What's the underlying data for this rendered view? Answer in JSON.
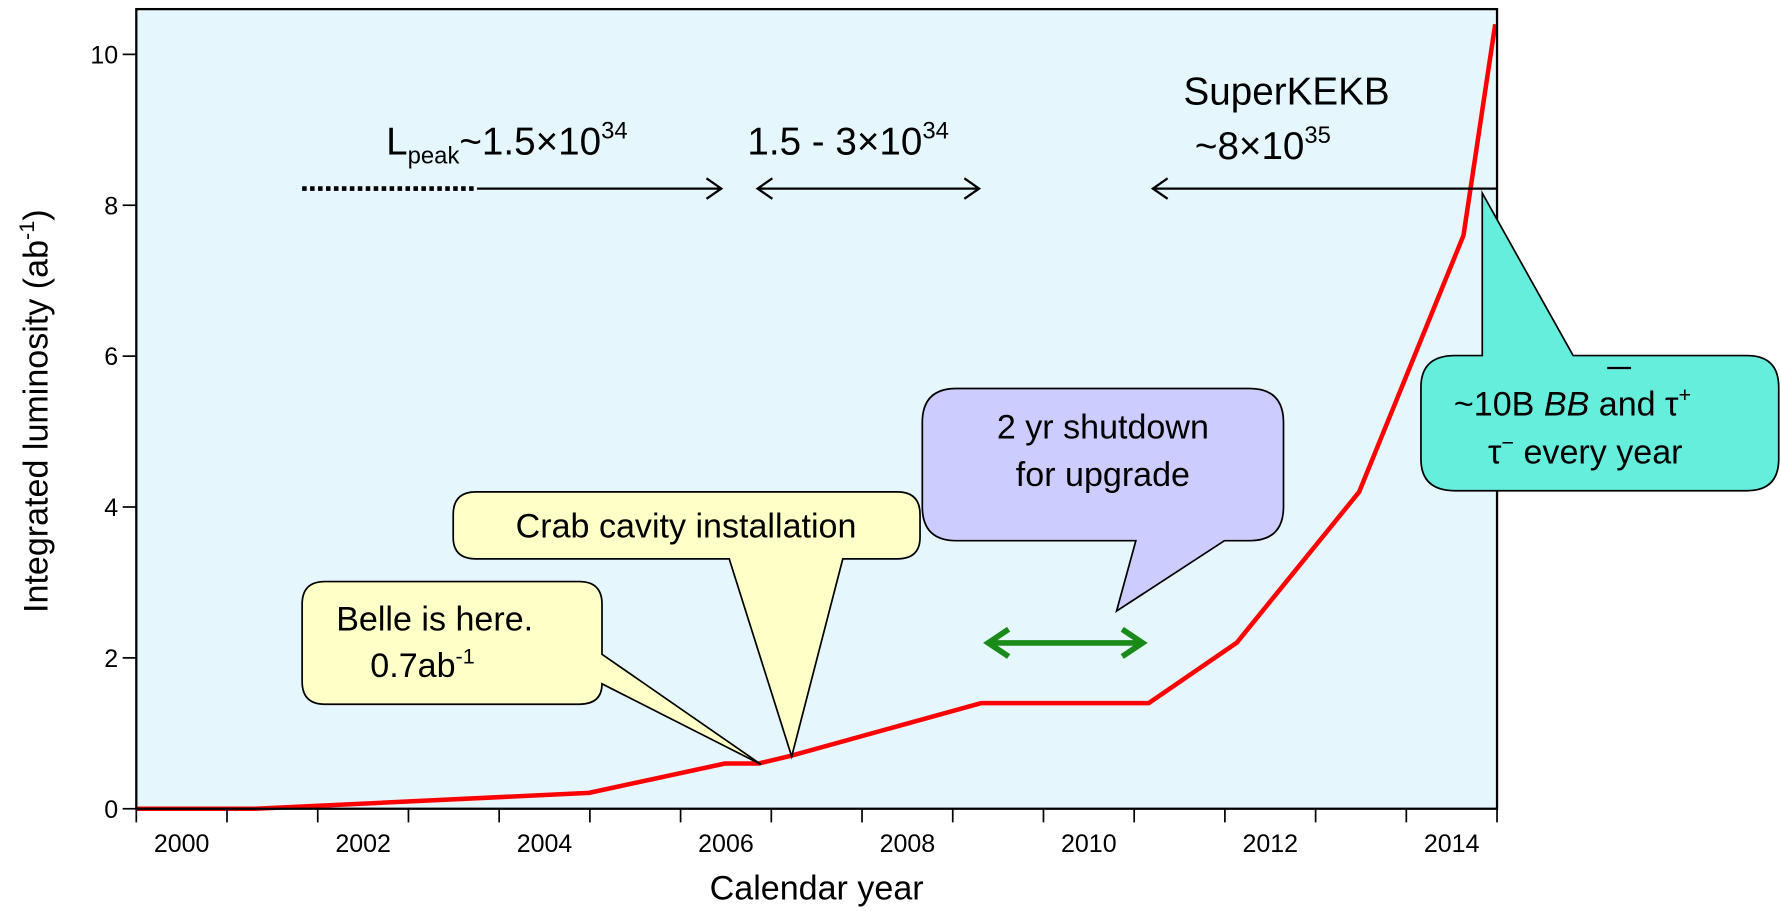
{
  "chart_data": {
    "type": "line",
    "x_label": "Calendar year",
    "y_label": [
      "Integrated luminosity (ab",
      "-1",
      ")"
    ],
    "x": [
      2000,
      2001.31,
      2004.99,
      2006.49,
      2006.86,
      2007.21,
      2009.31,
      2011.16,
      2012.13,
      2013.48,
      2014.63,
      2014.98
    ],
    "series": [
      {
        "color": "#ff0000",
        "values": [
          0,
          0,
          0.21,
          0.6,
          0.6,
          0.7,
          1.4,
          1.4,
          2.2,
          4.2,
          7.6,
          10.4
        ]
      }
    ],
    "xlim": [
      2000,
      2015
    ],
    "xticks": [
      {
        "value": 2000.5,
        "label": "2000"
      },
      {
        "value": 2002.5,
        "label": "2002"
      },
      {
        "value": 2004.5,
        "label": "2004"
      },
      {
        "value": 2006.5,
        "label": "2006"
      },
      {
        "value": 2008.5,
        "label": "2008"
      },
      {
        "value": 2010.5,
        "label": "2010"
      },
      {
        "value": 2012.5,
        "label": "2012"
      },
      {
        "value": 2014.5,
        "label": "2014"
      }
    ],
    "xtick_marks": [
      2000,
      2001,
      2002,
      2003,
      2004,
      2005,
      2006,
      2007,
      2008,
      2009,
      2010,
      2011,
      2012,
      2013,
      2014,
      2015
    ],
    "ylim": [
      0,
      10.6
    ],
    "yticks": [
      0,
      2,
      4,
      6,
      8,
      10
    ],
    "background": "#e5f6fc",
    "annotations": {
      "lpeak": [
        "L",
        "peak",
        "~1.5×10",
        "34"
      ],
      "range2": [
        "1.5 - 3×10",
        "34"
      ],
      "superkekb": "SuperKEKB",
      "superkekb_lum": [
        "~8×10",
        "35"
      ],
      "belle": [
        "Belle is here.",
        "0.7ab",
        "-1"
      ],
      "crab": "Crab cavity installation",
      "shutdown": [
        "2 yr shutdown",
        "for upgrade"
      ],
      "bb": [
        "~10B ",
        "BB",
        " and τ",
        "+",
        "τ",
        "−",
        " every year"
      ]
    }
  }
}
